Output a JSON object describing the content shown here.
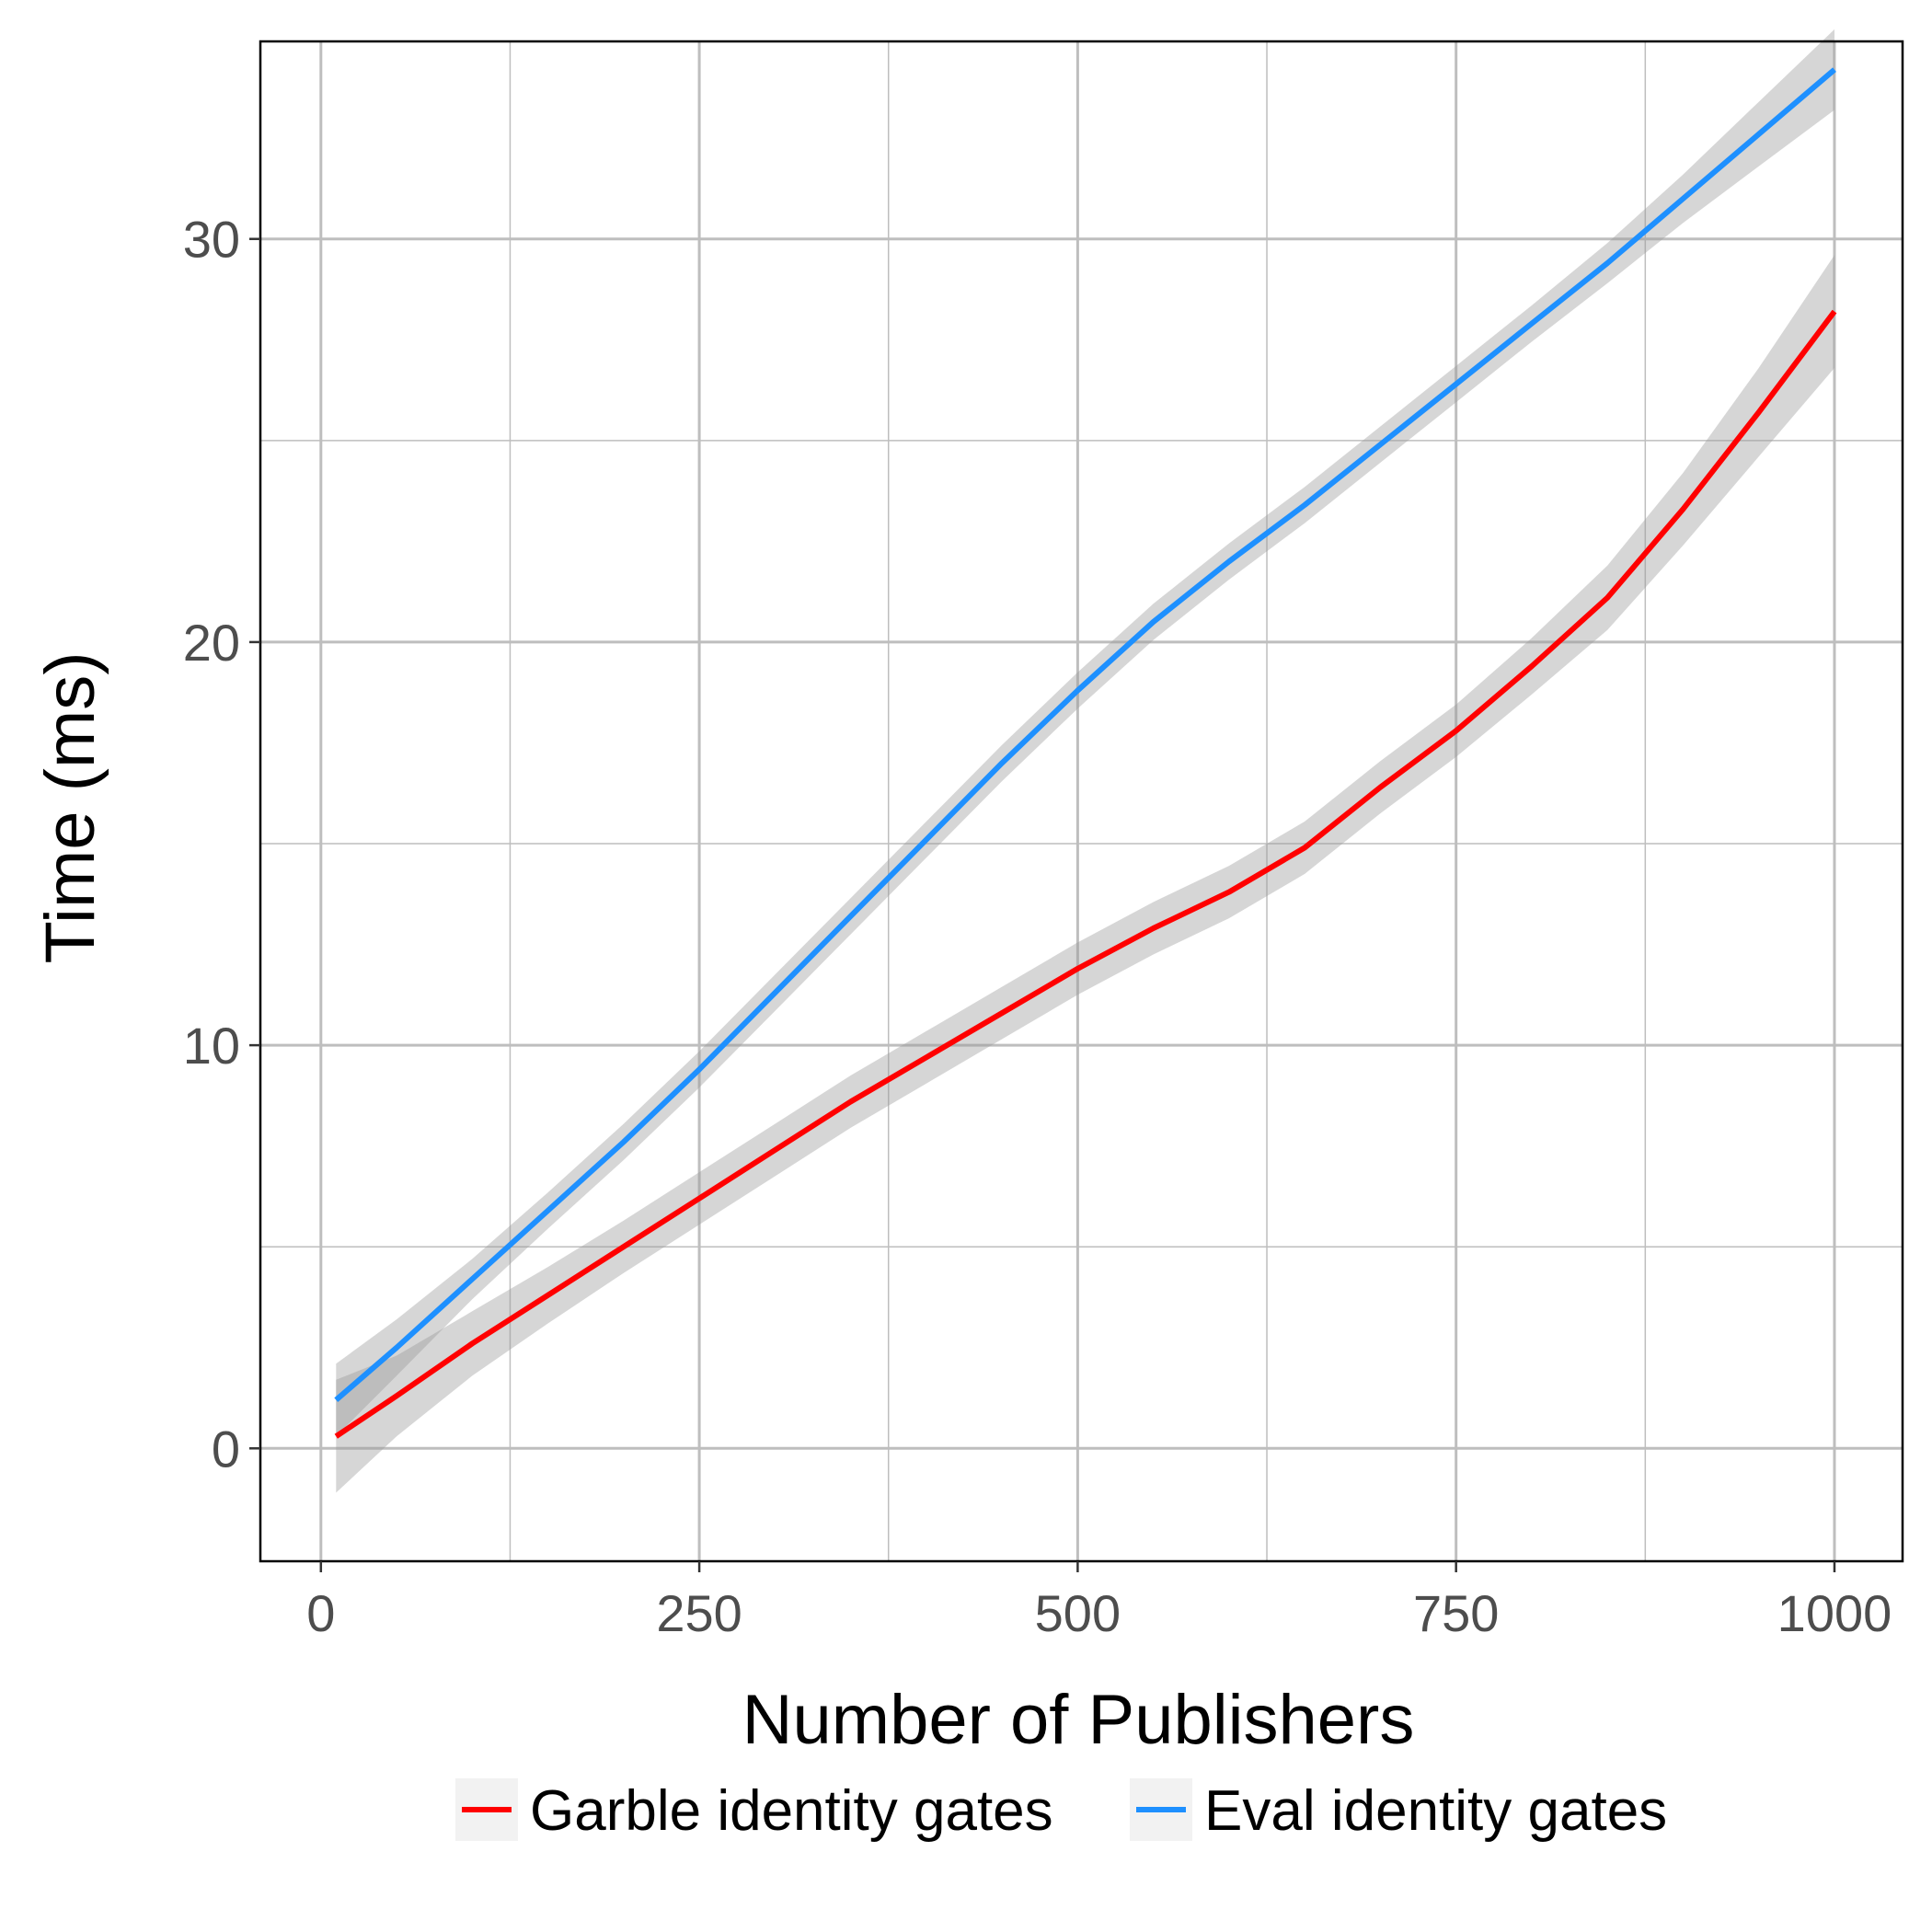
{
  "chart_data": {
    "type": "line",
    "title": "",
    "xlabel": "Number of Publishers",
    "ylabel": "Time (ms)",
    "xlim": [
      -40,
      1045
    ],
    "ylim": [
      -2.8,
      34.9
    ],
    "x_ticks": [
      0,
      250,
      500,
      750,
      1000
    ],
    "x_tick_labels": [
      "0",
      "250",
      "500",
      "750",
      "1000"
    ],
    "y_ticks": [
      0,
      10,
      20,
      30
    ],
    "y_tick_labels": [
      "0",
      "10",
      "20",
      "30"
    ],
    "x_minor_ticks": [
      125,
      375,
      625,
      875
    ],
    "y_minor_ticks": [
      5,
      15,
      25
    ],
    "grid": true,
    "legend_position": "bottom",
    "series": [
      {
        "name": "Garble identity gates",
        "color": "#FF0000",
        "x": [
          10,
          50,
          100,
          150,
          200,
          250,
          300,
          350,
          400,
          450,
          500,
          550,
          600,
          650,
          700,
          750,
          800,
          850,
          900,
          950,
          1000
        ],
        "y": [
          0.3,
          1.3,
          2.6,
          3.8,
          5.0,
          6.2,
          7.4,
          8.6,
          9.7,
          10.8,
          11.9,
          12.9,
          13.8,
          14.9,
          16.4,
          17.8,
          19.4,
          21.1,
          23.3,
          25.7,
          28.2
        ],
        "ci_halfwidth": [
          1.4,
          1.0,
          0.8,
          0.7,
          0.65,
          0.65,
          0.65,
          0.65,
          0.65,
          0.65,
          0.65,
          0.65,
          0.65,
          0.65,
          0.65,
          0.65,
          0.7,
          0.8,
          0.9,
          1.1,
          1.4
        ]
      },
      {
        "name": "Eval identity gates",
        "color": "#1E90FF",
        "x": [
          10,
          50,
          100,
          150,
          200,
          250,
          300,
          350,
          400,
          450,
          500,
          550,
          600,
          650,
          700,
          750,
          800,
          850,
          900,
          950,
          1000
        ],
        "y": [
          1.2,
          2.5,
          4.2,
          5.9,
          7.6,
          9.4,
          11.3,
          13.2,
          15.1,
          17.0,
          18.8,
          20.5,
          22.0,
          23.4,
          24.9,
          26.4,
          27.9,
          29.4,
          31.0,
          32.6,
          34.2
        ],
        "ci_halfwidth": [
          0.9,
          0.7,
          0.5,
          0.45,
          0.45,
          0.45,
          0.45,
          0.45,
          0.45,
          0.45,
          0.45,
          0.45,
          0.45,
          0.45,
          0.45,
          0.45,
          0.45,
          0.5,
          0.6,
          0.8,
          1.0
        ]
      }
    ],
    "colors": {
      "ribbon": "#999999",
      "grid": "#bebebe",
      "panel_border": "#000000",
      "legend_key_bg": "#f2f2f2"
    }
  }
}
